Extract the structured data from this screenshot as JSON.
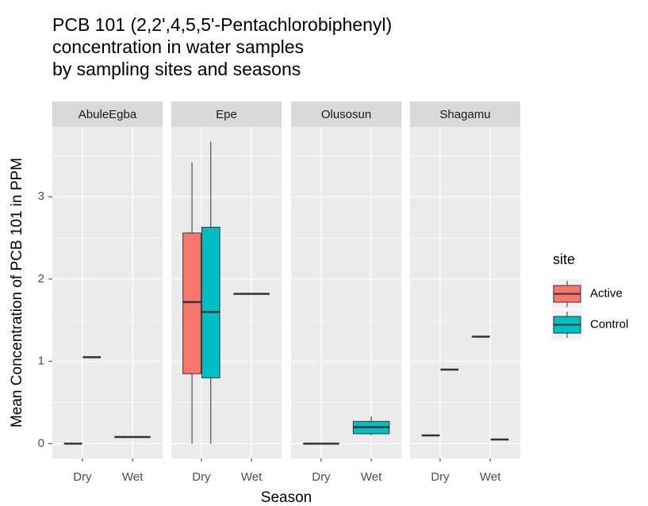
{
  "chart_data": {
    "type": "boxplot",
    "title": [
      "PCB 101 (2,2',4,5,5'-Pentachlorobiphenyl)",
      "concentration in water samples",
      "by sampling sites and seasons"
    ],
    "x_label": "Season",
    "y_label": "Mean Concentration of PCB 101 in PPM",
    "categories": [
      "Dry",
      "Wet"
    ],
    "ylim": [
      -0.18,
      3.85
    ],
    "yticks": [
      0,
      1,
      2,
      3
    ],
    "y_minor_grid": [
      0.5,
      1.5,
      2.5,
      3.5
    ],
    "legend": {
      "title": "site",
      "position": "right"
    },
    "series": [
      {
        "name": "Active",
        "color": "#F8766D"
      },
      {
        "name": "Control",
        "color": "#00BFC4"
      }
    ],
    "facets": [
      {
        "name": "AbuleEgba",
        "boxes": [
          {
            "category": 0,
            "series": 0,
            "min": 0,
            "q1": 0,
            "median": 0,
            "q3": 0,
            "max": 0
          },
          {
            "category": 0,
            "series": 1,
            "min": 1.05,
            "q1": 1.05,
            "median": 1.05,
            "q3": 1.05,
            "max": 1.05
          },
          {
            "category": 1,
            "series": 0,
            "min": 0.08,
            "q1": 0.08,
            "median": 0.08,
            "q3": 0.08,
            "max": 0.08,
            "single": true
          }
        ]
      },
      {
        "name": "Epe",
        "boxes": [
          {
            "category": 0,
            "series": 0,
            "min": 0,
            "q1": 0.85,
            "median": 1.72,
            "q3": 2.56,
            "max": 3.42
          },
          {
            "category": 0,
            "series": 1,
            "min": 0,
            "q1": 0.8,
            "median": 1.6,
            "q3": 2.63,
            "max": 3.67
          },
          {
            "category": 1,
            "series": 0,
            "min": 1.82,
            "q1": 1.82,
            "median": 1.82,
            "q3": 1.82,
            "max": 1.82,
            "single": true
          }
        ]
      },
      {
        "name": "Olusosun",
        "boxes": [
          {
            "category": 0,
            "series": 0,
            "min": 0,
            "q1": 0,
            "median": 0,
            "q3": 0,
            "max": 0,
            "single": true
          },
          {
            "category": 1,
            "series": 1,
            "min": 0.1,
            "q1": 0.12,
            "median": 0.2,
            "q3": 0.27,
            "max": 0.33,
            "single": true
          }
        ]
      },
      {
        "name": "Shagamu",
        "boxes": [
          {
            "category": 0,
            "series": 0,
            "min": 0.1,
            "q1": 0.1,
            "median": 0.1,
            "q3": 0.1,
            "max": 0.1
          },
          {
            "category": 0,
            "series": 1,
            "min": 0.9,
            "q1": 0.9,
            "median": 0.9,
            "q3": 0.9,
            "max": 0.9
          },
          {
            "category": 1,
            "series": 0,
            "min": 1.3,
            "q1": 1.3,
            "median": 1.3,
            "q3": 1.3,
            "max": 1.3
          },
          {
            "category": 1,
            "series": 1,
            "min": 0.05,
            "q1": 0.05,
            "median": 0.05,
            "q3": 0.05,
            "max": 0.05
          }
        ]
      }
    ]
  }
}
